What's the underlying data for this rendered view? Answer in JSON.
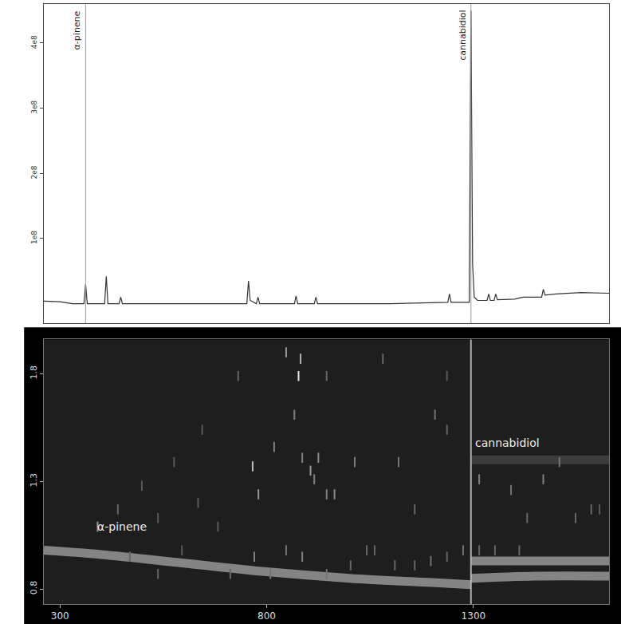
{
  "chart_data": [
    {
      "type": "line",
      "color": "#333333",
      "x": [
        261,
        300,
        330,
        358,
        362,
        366,
        408,
        412,
        416,
        443,
        447,
        451,
        600,
        752,
        756,
        760,
        775,
        779,
        783,
        867,
        871,
        875,
        915,
        919,
        923,
        1100,
        1238,
        1242,
        1246,
        1290,
        1294,
        1298,
        1302,
        1310,
        1333,
        1337,
        1341,
        1350,
        1354,
        1358,
        1400,
        1420,
        1465,
        1469,
        1473,
        1500,
        1560,
        1628
      ],
      "values": [
        4000000,
        3000000,
        0,
        0,
        30000000,
        0,
        0,
        42000000,
        0,
        0,
        10000000,
        0,
        0,
        0,
        35000000,
        5000000,
        0,
        10000000,
        0,
        0,
        12000000,
        0,
        0,
        10000000,
        0,
        0,
        2000000,
        15000000,
        2000000,
        2000000,
        450000000,
        60000000,
        10000000,
        5000000,
        5000000,
        15000000,
        5000000,
        5000000,
        15000000,
        6000000,
        7000000,
        10000000,
        10000000,
        22000000,
        13000000,
        15000000,
        17000000,
        16000000
      ],
      "xlim": [
        261,
        1628
      ],
      "ylim": [
        -30000000,
        460000000
      ],
      "yticks": [
        {
          "value": 100000000,
          "label": "1e8"
        },
        {
          "value": 200000000,
          "label": "2e8"
        },
        {
          "value": 300000000,
          "label": "3e8"
        },
        {
          "value": 400000000,
          "label": "4e8"
        }
      ],
      "tick_labels": "y",
      "grid": false,
      "annotations": [
        {
          "text": "α-pinene",
          "x": 362
        },
        {
          "text": "cannabidiol",
          "x": 1294
        }
      ]
    },
    {
      "type": "scatter",
      "xlim": [
        261,
        1628
      ],
      "ylim": [
        0.73,
        1.96
      ],
      "xticks": [
        300,
        800,
        1300
      ],
      "yticks": [
        0.8,
        1.3,
        1.8
      ],
      "grid": false,
      "series": [
        {
          "type": "line",
          "line_style": "band",
          "color": "#d8d8d8",
          "x": [
            261,
            400,
            600,
            800,
            1000,
            1200,
            1294
          ],
          "values": [
            0.98,
            0.96,
            0.92,
            0.88,
            0.85,
            0.83,
            0.82
          ]
        },
        {
          "type": "line",
          "line_style": "band",
          "color": "#d8d8d8",
          "x": [
            1294,
            1450,
            1628
          ],
          "values": [
            0.93,
            0.93,
            0.93
          ]
        },
        {
          "type": "line",
          "line_style": "band",
          "color": "#d8d8d8",
          "x": [
            1294,
            1450,
            1628
          ],
          "values": [
            0.85,
            0.86,
            0.86
          ]
        },
        {
          "type": "line",
          "line_style": "band",
          "color": "#555555",
          "x": [
            1294,
            1450,
            1628
          ],
          "values": [
            1.4,
            1.4,
            1.4
          ]
        },
        {
          "type": "line",
          "line_style": "solid",
          "color": "#bdbdbd",
          "x": [
            1294,
            1294
          ],
          "values": [
            0.73,
            1.96
          ]
        },
        {
          "type": "scatter",
          "marker": "line-ns",
          "color": "#ffffff",
          "x": [
            391,
            440,
            469,
            498,
            537,
            595,
            682,
            712,
            770,
            809,
            847,
            886,
            945,
            1003,
            1061,
            1110,
            1158,
            1197,
            1236,
            1275,
            766,
            780,
            818,
            847,
            877,
            882,
            867,
            886,
            906,
            925,
            915,
            945,
            964,
            1013,
            1119,
            1207,
            1236,
            1314,
            1391,
            1430,
            1469,
            1508,
            1547,
            1585,
            1605,
            731,
            945,
            644,
            634,
            576,
            537,
            1042,
            1314,
            1352,
            1411,
            1081,
            1158,
            1236
          ],
          "values": [
            1.09,
            1.17,
            0.95,
            1.28,
            0.87,
            0.98,
            1.09,
            0.87,
            0.95,
            0.87,
            0.98,
            0.95,
            0.87,
            0.91,
            0.98,
            0.91,
            0.91,
            0.93,
            0.95,
            0.98,
            1.37,
            1.24,
            1.46,
            1.9,
            1.79,
            1.87,
            1.61,
            1.41,
            1.35,
            1.41,
            1.31,
            1.24,
            1.24,
            1.39,
            1.39,
            1.61,
            1.54,
            1.31,
            1.26,
            1.13,
            1.31,
            1.39,
            1.13,
            1.17,
            1.17,
            1.79,
            1.79,
            1.54,
            1.2,
            1.39,
            1.13,
            0.98,
            0.98,
            0.98,
            0.98,
            1.87,
            1.17,
            1.79
          ],
          "intensity": [
            0.6,
            0.4,
            0.4,
            0.35,
            0.4,
            0.35,
            0.35,
            0.4,
            0.5,
            0.45,
            0.45,
            0.5,
            0.45,
            0.4,
            0.4,
            0.4,
            0.4,
            0.45,
            0.4,
            0.45,
            0.75,
            0.6,
            0.5,
            0.6,
            0.9,
            0.7,
            0.5,
            0.5,
            0.6,
            0.55,
            0.5,
            0.5,
            0.55,
            0.5,
            0.45,
            0.45,
            0.4,
            0.5,
            0.45,
            0.4,
            0.5,
            0.45,
            0.4,
            0.4,
            0.35,
            0.4,
            0.4,
            0.35,
            0.35,
            0.35,
            0.35,
            0.4,
            0.4,
            0.4,
            0.4,
            0.4,
            0.4,
            0.35
          ]
        }
      ],
      "annotations": [
        {
          "text": "α-pinene",
          "x": 380,
          "y": 1.09
        },
        {
          "text": "cannabidiol",
          "x": 1294,
          "y": 1.48
        }
      ]
    }
  ]
}
